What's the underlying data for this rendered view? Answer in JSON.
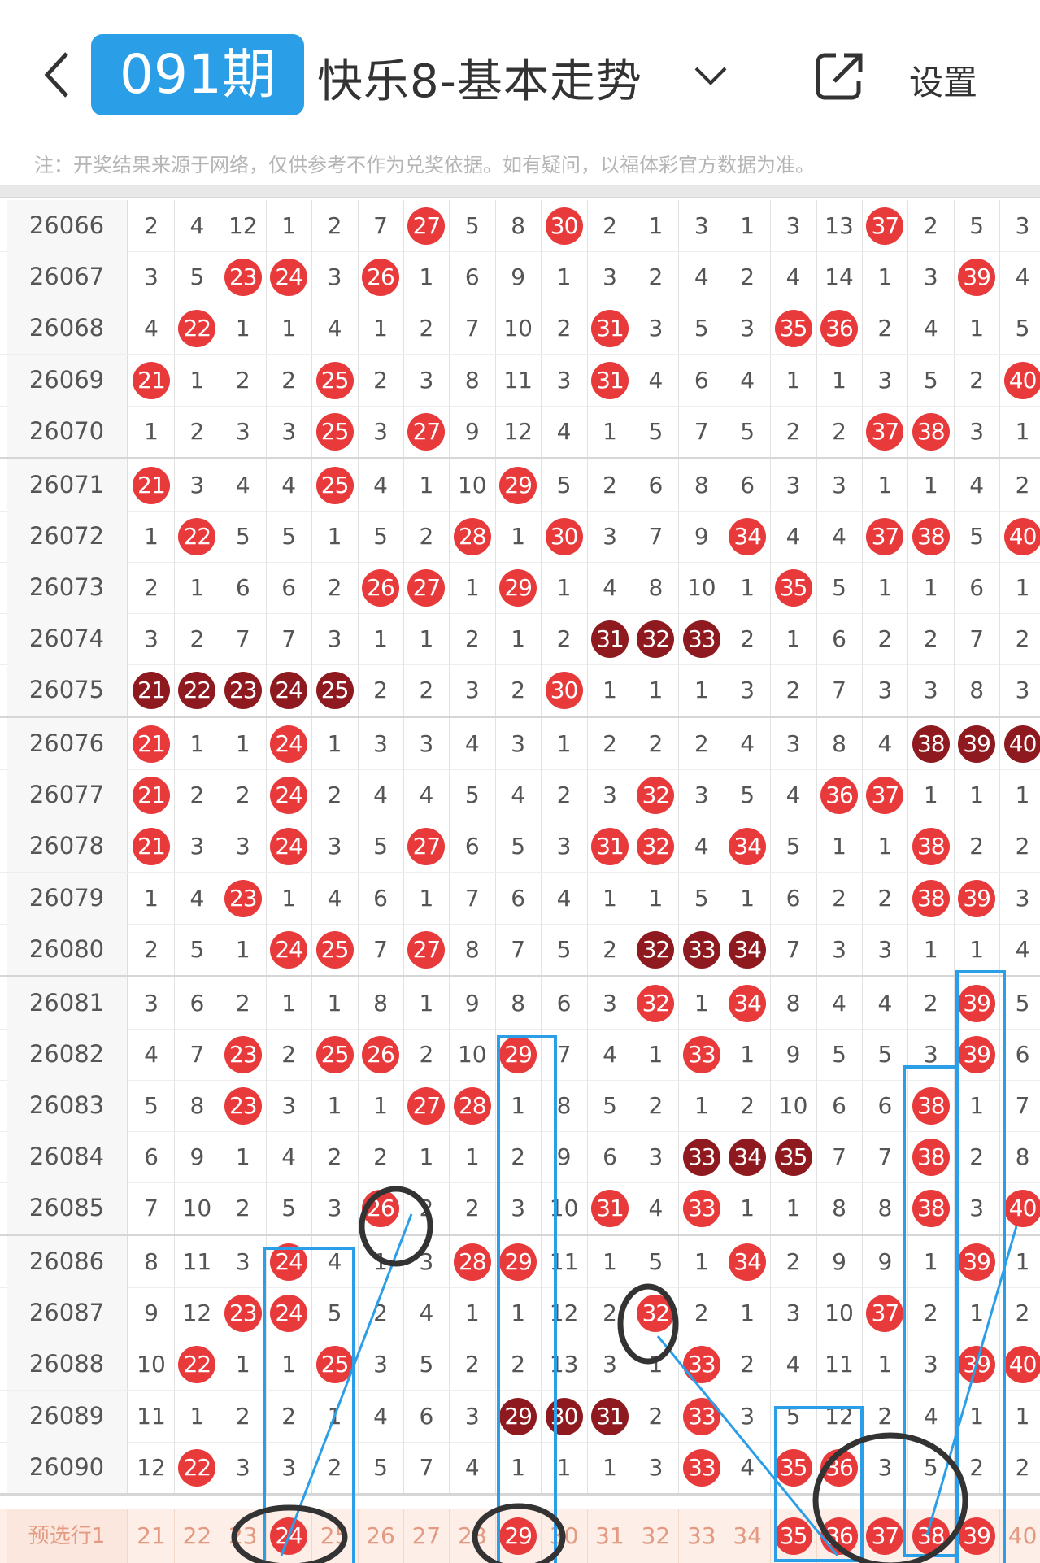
{
  "header": {
    "title": "快乐8-基本走势",
    "back_icon": "chevron-left-icon",
    "dropdown_icon": "chevron-down-icon",
    "share_icon": "share-external-icon",
    "settings_label": "设置"
  },
  "note": "注：开奖结果来源于网络，仅供参考不作为兑奖依据。如有疑问，以福体彩官方数据为准。",
  "columns": [
    21,
    22,
    23,
    24,
    25,
    26,
    27,
    28,
    29,
    30,
    31,
    32,
    33,
    34,
    35,
    36,
    37,
    38,
    39,
    40
  ],
  "colors": {
    "hit": "#e8393b",
    "consecutive": "#8e1a1f",
    "annotation_blue": "#2b9ee8",
    "annotation_black": "#333333",
    "preselect_bg": "#fdeee8"
  },
  "rows": [
    {
      "issue": "26066",
      "cells": [
        2,
        4,
        12,
        1,
        2,
        7,
        27,
        5,
        8,
        30,
        2,
        1,
        3,
        1,
        3,
        13,
        37,
        2,
        5,
        3
      ],
      "hit": [
        27,
        30,
        37
      ],
      "consec": []
    },
    {
      "issue": "26067",
      "cells": [
        3,
        5,
        23,
        24,
        3,
        26,
        1,
        6,
        9,
        1,
        3,
        2,
        4,
        2,
        4,
        14,
        1,
        3,
        39,
        4
      ],
      "hit": [
        23,
        24,
        26,
        39
      ],
      "consec": []
    },
    {
      "issue": "26068",
      "cells": [
        4,
        22,
        1,
        1,
        4,
        1,
        2,
        7,
        10,
        2,
        31,
        3,
        5,
        3,
        35,
        36,
        2,
        4,
        1,
        5
      ],
      "hit": [
        22,
        31,
        35,
        36
      ],
      "consec": []
    },
    {
      "issue": "26069",
      "cells": [
        21,
        1,
        2,
        2,
        25,
        2,
        3,
        8,
        11,
        3,
        31,
        4,
        6,
        4,
        1,
        1,
        3,
        5,
        2,
        40
      ],
      "hit": [
        21,
        25,
        31,
        40
      ],
      "consec": []
    },
    {
      "issue": "26070",
      "cells": [
        1,
        2,
        3,
        3,
        25,
        3,
        27,
        9,
        12,
        4,
        1,
        5,
        7,
        5,
        2,
        2,
        37,
        38,
        3,
        1
      ],
      "hit": [
        25,
        27,
        37,
        38
      ],
      "consec": []
    },
    {
      "issue": "26071",
      "cells": [
        21,
        3,
        4,
        4,
        25,
        4,
        1,
        10,
        29,
        5,
        2,
        6,
        8,
        6,
        3,
        3,
        1,
        1,
        4,
        2
      ],
      "hit": [
        21,
        25,
        29
      ],
      "consec": []
    },
    {
      "issue": "26072",
      "cells": [
        1,
        22,
        5,
        5,
        1,
        5,
        2,
        28,
        1,
        30,
        3,
        7,
        9,
        34,
        4,
        4,
        37,
        38,
        5,
        40
      ],
      "hit": [
        22,
        28,
        30,
        34,
        37,
        38,
        40
      ],
      "consec": []
    },
    {
      "issue": "26073",
      "cells": [
        2,
        1,
        6,
        6,
        2,
        26,
        27,
        1,
        29,
        1,
        4,
        8,
        10,
        1,
        35,
        5,
        1,
        1,
        6,
        1
      ],
      "hit": [
        26,
        27,
        29,
        35
      ],
      "consec": []
    },
    {
      "issue": "26074",
      "cells": [
        3,
        2,
        7,
        7,
        3,
        1,
        1,
        2,
        1,
        2,
        31,
        32,
        33,
        2,
        1,
        6,
        2,
        2,
        7,
        2
      ],
      "hit": [
        31,
        32,
        33
      ],
      "consec": [
        31,
        32,
        33
      ]
    },
    {
      "issue": "26075",
      "cells": [
        21,
        22,
        23,
        24,
        25,
        2,
        2,
        3,
        2,
        30,
        1,
        1,
        1,
        3,
        2,
        7,
        3,
        3,
        8,
        3
      ],
      "hit": [
        21,
        22,
        23,
        24,
        25,
        30
      ],
      "consec": [
        21,
        22,
        23,
        24,
        25
      ]
    },
    {
      "issue": "26076",
      "cells": [
        21,
        1,
        1,
        24,
        1,
        3,
        3,
        4,
        3,
        1,
        2,
        2,
        2,
        4,
        3,
        8,
        4,
        38,
        39,
        40
      ],
      "hit": [
        21,
        24,
        38,
        39,
        40
      ],
      "consec": [
        38,
        39,
        40
      ]
    },
    {
      "issue": "26077",
      "cells": [
        21,
        2,
        2,
        24,
        2,
        4,
        4,
        5,
        4,
        2,
        3,
        32,
        3,
        5,
        4,
        36,
        37,
        1,
        1,
        1
      ],
      "hit": [
        21,
        24,
        32,
        36,
        37
      ],
      "consec": []
    },
    {
      "issue": "26078",
      "cells": [
        21,
        3,
        3,
        24,
        3,
        5,
        27,
        6,
        5,
        3,
        31,
        32,
        4,
        34,
        5,
        1,
        1,
        38,
        2,
        2
      ],
      "hit": [
        21,
        24,
        27,
        31,
        32,
        34,
        38
      ],
      "consec": []
    },
    {
      "issue": "26079",
      "cells": [
        1,
        4,
        23,
        1,
        4,
        6,
        1,
        7,
        6,
        4,
        1,
        1,
        5,
        1,
        6,
        2,
        2,
        38,
        39,
        3
      ],
      "hit": [
        23,
        38,
        39
      ],
      "consec": []
    },
    {
      "issue": "26080",
      "cells": [
        2,
        5,
        1,
        24,
        25,
        7,
        27,
        8,
        7,
        5,
        2,
        32,
        33,
        34,
        7,
        3,
        3,
        1,
        1,
        4
      ],
      "hit": [
        24,
        25,
        27,
        32,
        33,
        34
      ],
      "consec": [
        32,
        33,
        34
      ]
    },
    {
      "issue": "26081",
      "cells": [
        3,
        6,
        2,
        1,
        1,
        8,
        1,
        9,
        8,
        6,
        3,
        32,
        1,
        34,
        8,
        4,
        4,
        2,
        39,
        5
      ],
      "hit": [
        32,
        34,
        39
      ],
      "consec": []
    },
    {
      "issue": "26082",
      "cells": [
        4,
        7,
        23,
        2,
        25,
        26,
        2,
        10,
        29,
        7,
        4,
        1,
        33,
        1,
        9,
        5,
        5,
        3,
        39,
        6
      ],
      "hit": [
        23,
        25,
        26,
        29,
        33,
        39
      ],
      "consec": []
    },
    {
      "issue": "26083",
      "cells": [
        5,
        8,
        23,
        3,
        1,
        1,
        27,
        28,
        1,
        8,
        5,
        2,
        1,
        2,
        10,
        6,
        6,
        38,
        1,
        7
      ],
      "hit": [
        23,
        27,
        28,
        38
      ],
      "consec": []
    },
    {
      "issue": "26084",
      "cells": [
        6,
        9,
        1,
        4,
        2,
        2,
        1,
        1,
        2,
        9,
        6,
        3,
        33,
        34,
        35,
        7,
        7,
        38,
        2,
        8
      ],
      "hit": [
        33,
        34,
        35,
        38
      ],
      "consec": [
        33,
        34,
        35
      ]
    },
    {
      "issue": "26085",
      "cells": [
        7,
        10,
        2,
        5,
        3,
        26,
        2,
        2,
        3,
        10,
        31,
        4,
        33,
        1,
        1,
        8,
        8,
        38,
        3,
        40
      ],
      "hit": [
        26,
        31,
        33,
        38,
        40
      ],
      "consec": []
    },
    {
      "issue": "26086",
      "cells": [
        8,
        11,
        3,
        24,
        4,
        1,
        3,
        28,
        29,
        11,
        1,
        5,
        1,
        34,
        2,
        9,
        9,
        1,
        39,
        1
      ],
      "hit": [
        24,
        28,
        29,
        34,
        39
      ],
      "consec": []
    },
    {
      "issue": "26087",
      "cells": [
        9,
        12,
        23,
        24,
        5,
        2,
        4,
        1,
        1,
        12,
        2,
        32,
        2,
        1,
        3,
        10,
        37,
        2,
        1,
        2
      ],
      "hit": [
        23,
        24,
        32,
        37
      ],
      "consec": []
    },
    {
      "issue": "26088",
      "cells": [
        10,
        22,
        1,
        1,
        25,
        3,
        5,
        2,
        2,
        13,
        3,
        1,
        33,
        2,
        4,
        11,
        1,
        3,
        39,
        40
      ],
      "hit": [
        22,
        25,
        33,
        39,
        40
      ],
      "consec": []
    },
    {
      "issue": "26089",
      "cells": [
        11,
        1,
        2,
        2,
        1,
        4,
        6,
        3,
        29,
        30,
        31,
        2,
        33,
        3,
        5,
        12,
        2,
        4,
        1,
        1
      ],
      "hit": [
        29,
        30,
        31,
        33
      ],
      "consec": [
        29,
        30,
        31
      ]
    },
    {
      "issue": "26090",
      "cells": [
        12,
        22,
        3,
        3,
        2,
        5,
        7,
        4,
        1,
        1,
        1,
        3,
        33,
        4,
        35,
        36,
        3,
        5,
        2,
        2
      ],
      "hit": [
        22,
        33,
        35,
        36
      ],
      "consec": []
    }
  ],
  "preselect": {
    "label": "预选行1",
    "selected": [
      24,
      29,
      35,
      36,
      37,
      38,
      39
    ]
  },
  "annotation": {
    "tag_label": "091期"
  }
}
